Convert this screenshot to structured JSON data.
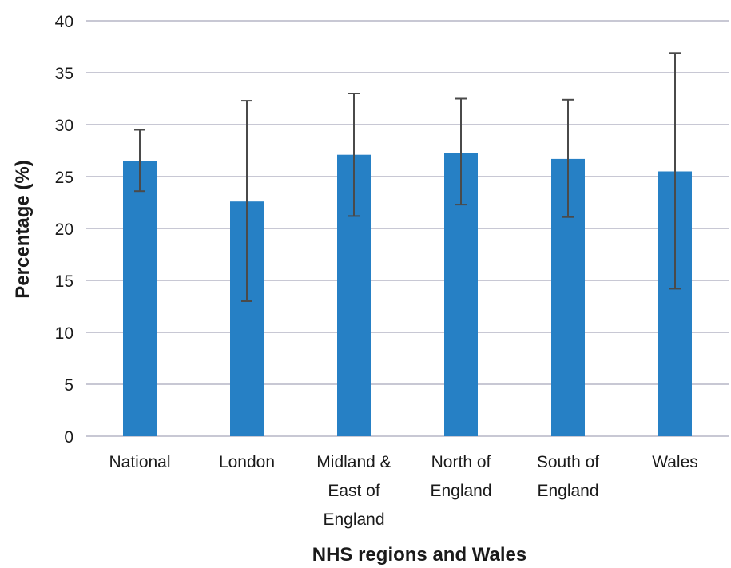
{
  "chart_data": {
    "type": "bar",
    "title": "",
    "xlabel": "NHS regions and Wales",
    "ylabel": "Percentage (%)",
    "ylim": [
      0,
      40
    ],
    "yticks": [
      0,
      5,
      10,
      15,
      20,
      25,
      30,
      35,
      40
    ],
    "grid": true,
    "legend": "none",
    "bar_color": "#2680c5",
    "errorbar_color": "#4a4a4a",
    "grid_color": "#c8c8d4",
    "categories": [
      [
        "National"
      ],
      [
        "London"
      ],
      [
        "Midland &",
        "East of",
        "England"
      ],
      [
        "North of",
        "England"
      ],
      [
        "South of",
        "England"
      ],
      [
        "Wales"
      ]
    ],
    "values": [
      26.5,
      22.6,
      27.1,
      27.3,
      26.7,
      25.5
    ],
    "error_low": [
      23.6,
      13.0,
      21.2,
      22.3,
      21.1,
      14.2
    ],
    "error_high": [
      29.5,
      32.3,
      33.0,
      32.5,
      32.4,
      36.9
    ]
  }
}
